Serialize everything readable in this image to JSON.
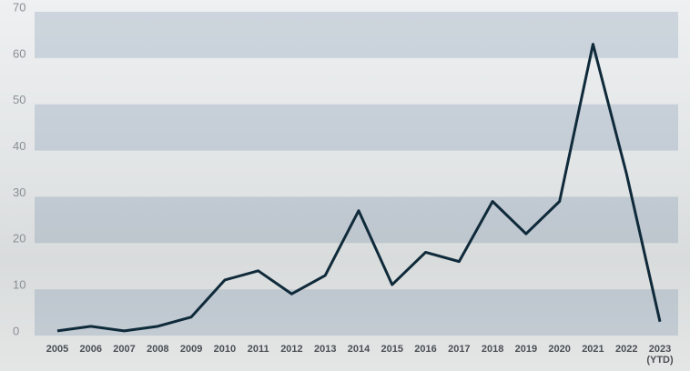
{
  "chart_data": {
    "type": "line",
    "categories": [
      "2005",
      "2006",
      "2007",
      "2008",
      "2009",
      "2010",
      "2011",
      "2012",
      "2013",
      "2014",
      "2015",
      "2016",
      "2017",
      "2018",
      "2019",
      "2020",
      "2021",
      "2022",
      "2023 (YTD)"
    ],
    "series": [
      {
        "color": "#0f2a3a",
        "values": [
          1,
          2,
          1,
          2,
          4,
          12,
          14,
          9,
          13,
          27,
          11,
          18,
          16,
          29,
          22,
          29,
          63,
          35,
          3
        ]
      }
    ],
    "ylim": [
      0,
      70
    ],
    "yticks": [
      0,
      10,
      20,
      30,
      40,
      50,
      60,
      70
    ],
    "band_color": "rgba(45, 85, 130, 0.17)"
  }
}
